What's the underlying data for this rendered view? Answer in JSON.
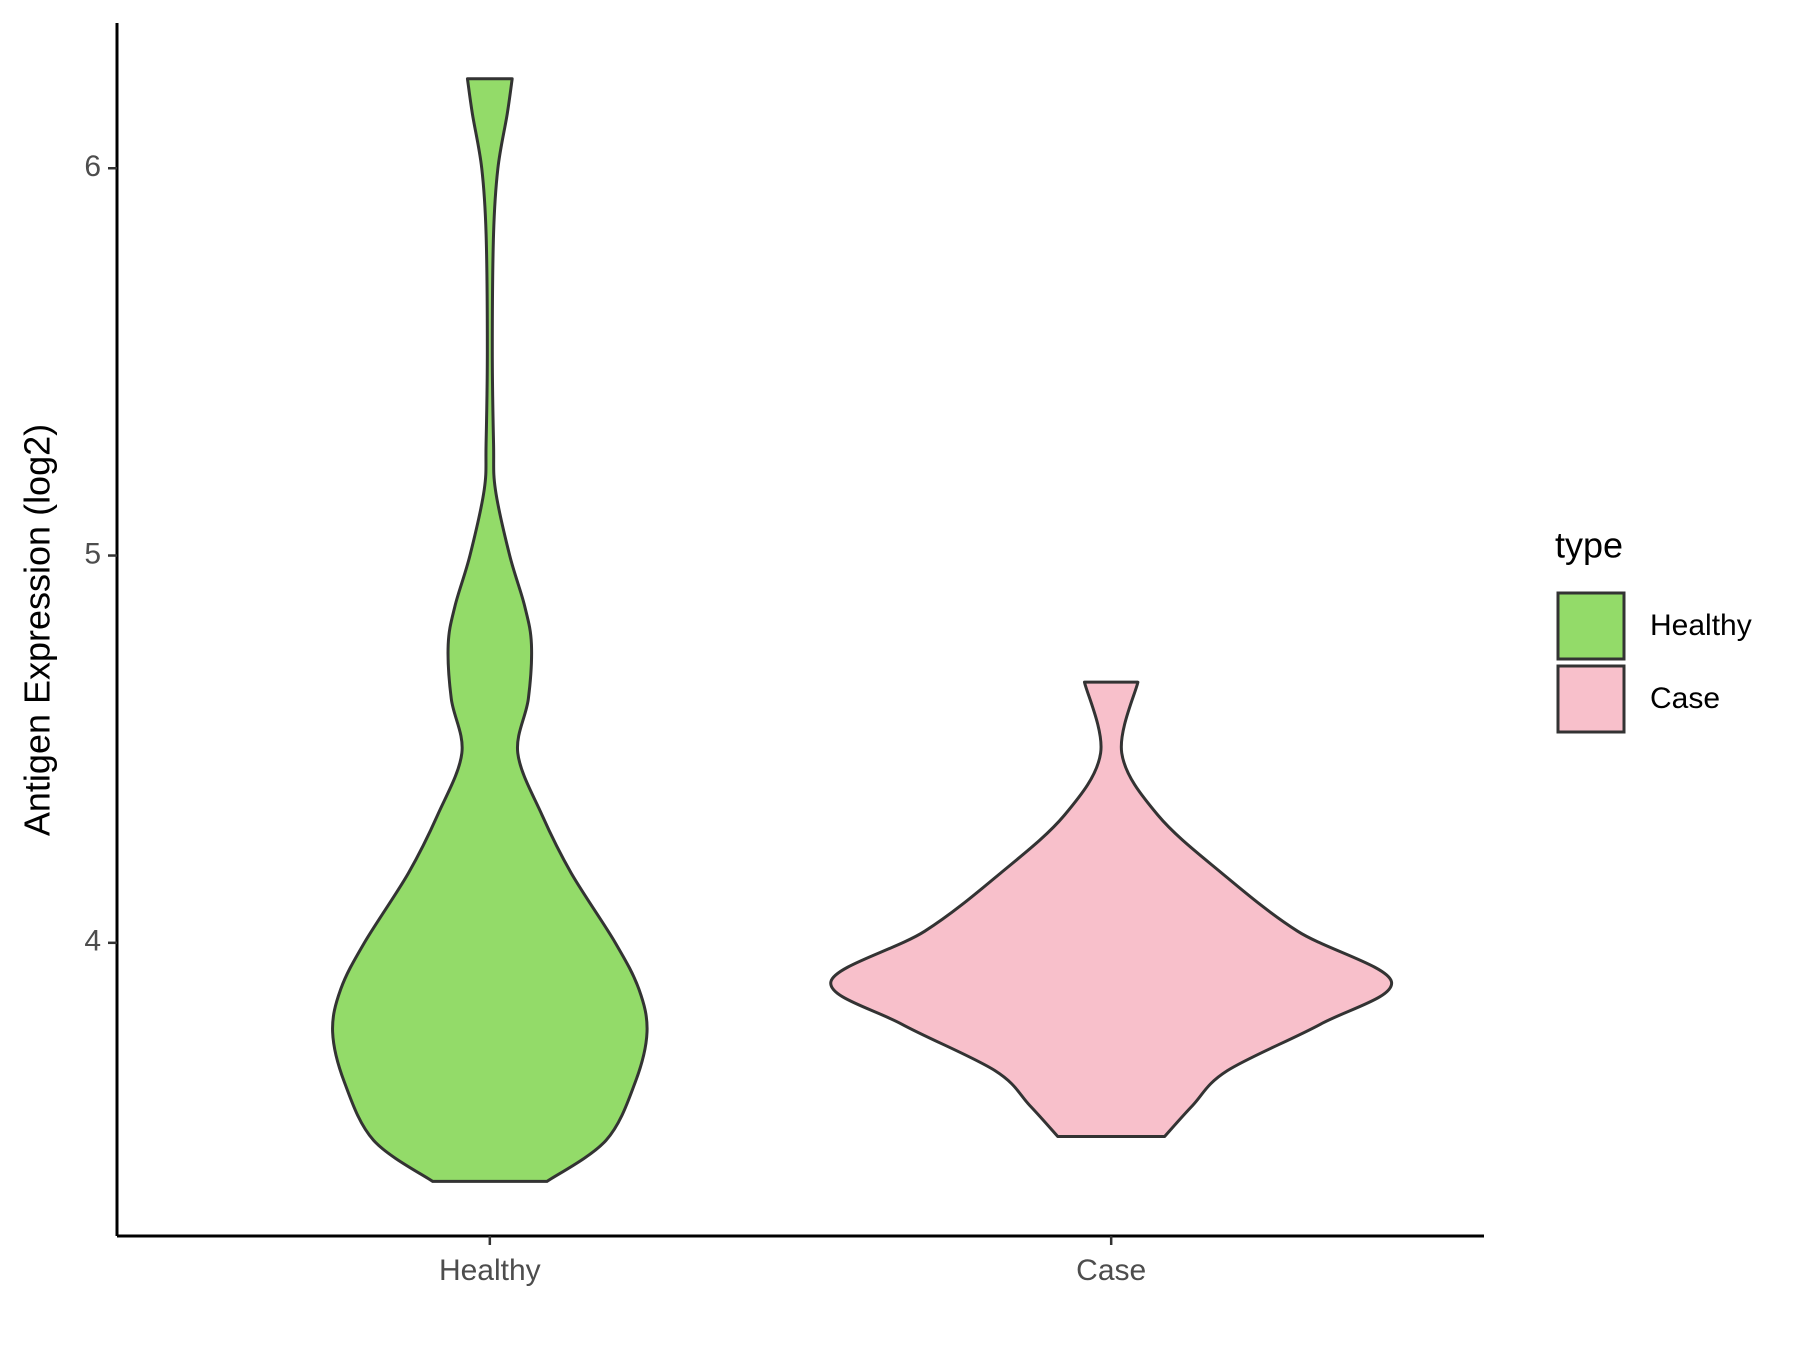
{
  "chart_data": {
    "type": "violin",
    "y_label": "Antigen Expression (log2)",
    "categories": [
      "Healthy",
      "Case"
    ],
    "legend_title": "type",
    "ylim": [
      3.243,
      6.375
    ],
    "yticks": [
      4,
      5,
      6
    ],
    "series": [
      {
        "name": "Healthy",
        "color": "#93DB69",
        "y": [
          3.384,
          3.49,
          3.64,
          3.77,
          3.88,
          4.0,
          4.18,
          4.33,
          4.49,
          4.63,
          4.77,
          4.87,
          5.0,
          5.17,
          5.29,
          5.53,
          5.83,
          6.0,
          6.14,
          6.231
        ],
        "half_width": [
          0.092,
          0.187,
          0.234,
          0.253,
          0.24,
          0.202,
          0.131,
          0.084,
          0.045,
          0.062,
          0.067,
          0.056,
          0.032,
          0.009,
          0.006,
          0.004,
          0.006,
          0.013,
          0.028,
          0.036
        ]
      },
      {
        "name": "Case",
        "color": "#F8C0CB",
        "y": [
          3.5,
          3.58,
          3.67,
          3.79,
          3.9,
          4.03,
          4.18,
          4.33,
          4.49,
          4.673
        ],
        "half_width": [
          0.086,
          0.131,
          0.187,
          0.337,
          0.451,
          0.3,
          0.178,
          0.075,
          0.017,
          0.043
        ]
      }
    ]
  }
}
